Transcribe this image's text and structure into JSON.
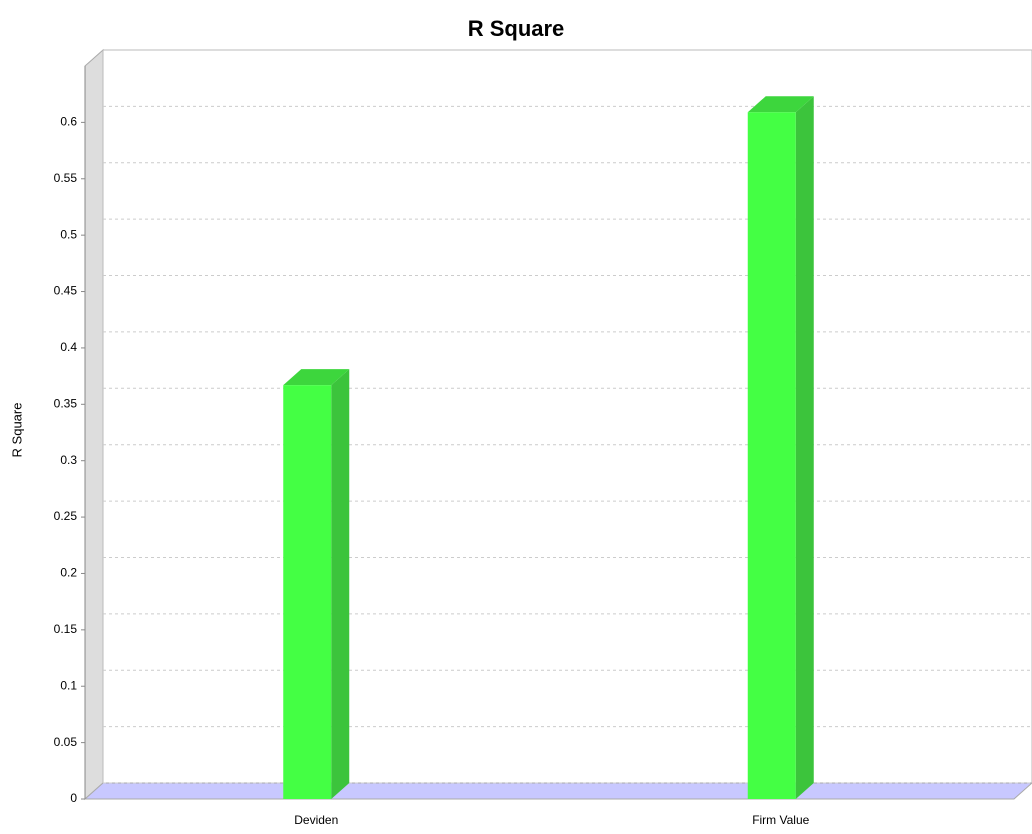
{
  "chart_data": {
    "type": "bar3d",
    "title": "R Square",
    "y_label": "R Square",
    "categories": [
      "Deviden",
      "Firm Value"
    ],
    "values": [
      0.367,
      0.609
    ],
    "color": "#44ff44",
    "ylim": [
      0,
      0.65
    ],
    "yticks": [
      0,
      0.05,
      0.1,
      0.15,
      0.2,
      0.25,
      0.3,
      0.35,
      0.4,
      0.45,
      0.5,
      0.55,
      0.6
    ],
    "grid": true
  }
}
